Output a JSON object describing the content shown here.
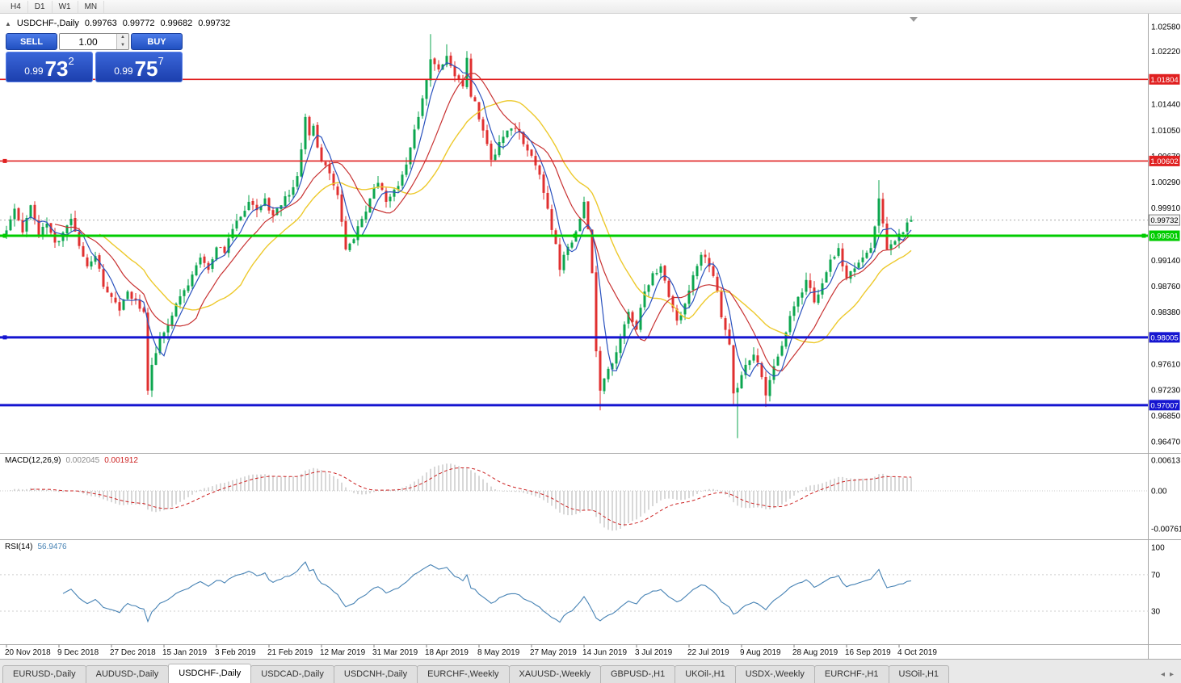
{
  "window": {
    "toolbar_timeframes": [
      "H4",
      "D1",
      "W1",
      "MN"
    ]
  },
  "chart": {
    "header": {
      "collapse_icon": "▲",
      "symbol": "USDCHF-,Daily",
      "open": "0.99763",
      "high": "0.99772",
      "low": "0.99682",
      "close": "0.99732"
    },
    "one_click": {
      "sell_label": "SELL",
      "buy_label": "BUY",
      "volume": "1.00",
      "spinner_up": "▲",
      "spinner_down": "▼",
      "sell": {
        "small": "0.99",
        "big": "73",
        "sup": "2"
      },
      "buy": {
        "small": "0.99",
        "big": "75",
        "sup": "7"
      }
    }
  },
  "chart_data": {
    "type": "candlestick",
    "symbol": "USDCHF",
    "timeframe": "Daily",
    "candles_per_label": 13,
    "x_axis_dates": [
      "20 Nov 2018",
      "9 Dec 2018",
      "27 Dec 2018",
      "15 Jan 2019",
      "3 Feb 2019",
      "21 Feb 2019",
      "12 Mar 2019",
      "31 Mar 2019",
      "18 Apr 2019",
      "8 May 2019",
      "27 May 2019",
      "14 Jun 2019",
      "3 Jul 2019",
      "22 Jul 2019",
      "9 Aug 2019",
      "28 Aug 2019",
      "16 Sep 2019",
      "4 Oct 2019"
    ],
    "y_axis_labels": [
      "1.02580",
      "1.02220",
      "1.01440",
      "1.01050",
      "1.00670",
      "1.00290",
      "0.99910",
      "0.99140",
      "0.98760",
      "0.98380",
      "0.97610",
      "0.97230",
      "0.96850",
      "0.96470"
    ],
    "current_price": {
      "value": 0.99732,
      "label": "0.99732"
    },
    "levels": [
      {
        "price": 1.01804,
        "label": "1.01804",
        "color": "#e02020",
        "width": 1.6,
        "handles": []
      },
      {
        "price": 1.00602,
        "label": "1.00602",
        "color": "#e02020",
        "width": 1.6,
        "handles": [
          6
        ]
      },
      {
        "price": 0.99501,
        "label": "0.99501",
        "color": "#00cc00",
        "width": 3,
        "handles": [
          6,
          712,
          1416
        ]
      },
      {
        "price": 0.98005,
        "label": "0.98005",
        "color": "#1515d0",
        "width": 3,
        "handles": [
          6
        ]
      },
      {
        "price": 0.97007,
        "label": "0.97007",
        "color": "#1515d0",
        "width": 3,
        "handles": []
      }
    ],
    "moving_averages": [
      {
        "period": 5,
        "color": "#2a52be",
        "width": 1.2
      },
      {
        "period": 13,
        "color": "#c83232",
        "width": 1.2
      },
      {
        "period": 24,
        "color": "#edc92c",
        "width": 1.4
      }
    ],
    "macd": {
      "label": "MACD(12,26,9)",
      "fast": 12,
      "slow": 26,
      "signal": 9,
      "value_main": "0.002045",
      "value_signal": "0.001912",
      "axis_labels": [
        "0.00613",
        "0.00",
        "-0.00761"
      ]
    },
    "rsi": {
      "label": "RSI(14)",
      "period": 14,
      "value": "56.9476",
      "levels": [
        70,
        30
      ],
      "axis_labels": [
        "100",
        "70",
        "30"
      ]
    },
    "colors": {
      "up_candle": "#0ca64f",
      "down_candle": "#e03030",
      "macd_histogram": "#b0b0b0",
      "macd_signal": "#cc2222",
      "rsi_line": "#4682b4",
      "background": "#ffffff"
    },
    "price_anchors": [
      [
        0,
        0.9958
      ],
      [
        2,
        0.999
      ],
      [
        4,
        0.9955
      ],
      [
        6,
        0.9995
      ],
      [
        8,
        0.995
      ],
      [
        10,
        0.9968
      ],
      [
        12,
        0.994
      ],
      [
        14,
        0.9955
      ],
      [
        16,
        0.9975
      ],
      [
        18,
        0.9935
      ],
      [
        20,
        0.9905
      ],
      [
        22,
        0.992
      ],
      [
        24,
        0.9875
      ],
      [
        26,
        0.986
      ],
      [
        28,
        0.984
      ],
      [
        30,
        0.9868
      ],
      [
        32,
        0.9855
      ],
      [
        34,
        0.9838
      ],
      [
        35,
        0.9722
      ],
      [
        36,
        0.976
      ],
      [
        38,
        0.98
      ],
      [
        40,
        0.9818
      ],
      [
        42,
        0.985
      ],
      [
        44,
        0.987
      ],
      [
        46,
        0.9893
      ],
      [
        48,
        0.9918
      ],
      [
        50,
        0.99
      ],
      [
        52,
        0.9933
      ],
      [
        54,
        0.9925
      ],
      [
        56,
        0.996
      ],
      [
        58,
        0.9978
      ],
      [
        60,
        1.0
      ],
      [
        62,
        0.9988
      ],
      [
        64,
        1.0005
      ],
      [
        66,
        0.998
      ],
      [
        68,
        0.9995
      ],
      [
        70,
        1.001
      ],
      [
        72,
        1.0038
      ],
      [
        74,
        1.0125
      ],
      [
        75,
        1.0098
      ],
      [
        76,
        1.0112
      ],
      [
        77,
        1.008
      ],
      [
        78,
        1.006
      ],
      [
        80,
        1.0042
      ],
      [
        82,
        1.001
      ],
      [
        84,
        0.993
      ],
      [
        86,
        0.9945
      ],
      [
        88,
        0.9975
      ],
      [
        90,
        1.0005
      ],
      [
        92,
        1.0028
      ],
      [
        94,
        1.0
      ],
      [
        96,
        1.0018
      ],
      [
        98,
        1.004
      ],
      [
        100,
        1.008
      ],
      [
        102,
        1.0125
      ],
      [
        104,
        1.018
      ],
      [
        105,
        1.021
      ],
      [
        107,
        1.0195
      ],
      [
        109,
        1.0215
      ],
      [
        111,
        1.0185
      ],
      [
        113,
        1.017
      ],
      [
        114,
        1.0212
      ],
      [
        115,
        1.0155
      ],
      [
        116,
        1.0148
      ],
      [
        118,
        1.0105
      ],
      [
        120,
        1.0062
      ],
      [
        122,
        1.0088
      ],
      [
        124,
        1.0105
      ],
      [
        126,
        1.0108
      ],
      [
        128,
        1.0085
      ],
      [
        130,
        1.0068
      ],
      [
        132,
        1.004
      ],
      [
        134,
        0.999
      ],
      [
        136,
        0.9938
      ],
      [
        137,
        0.99
      ],
      [
        138,
        0.9922
      ],
      [
        140,
        0.994
      ],
      [
        142,
        0.9975
      ],
      [
        143,
        1.0
      ],
      [
        144,
        0.996
      ],
      [
        145,
        0.9895
      ],
      [
        146,
        0.978
      ],
      [
        147,
        0.9722
      ],
      [
        148,
        0.974
      ],
      [
        150,
        0.9762
      ],
      [
        152,
        0.98
      ],
      [
        154,
        0.9838
      ],
      [
        156,
        0.9812
      ],
      [
        158,
        0.9868
      ],
      [
        160,
        0.9895
      ],
      [
        162,
        0.9905
      ],
      [
        164,
        0.986
      ],
      [
        166,
        0.9825
      ],
      [
        168,
        0.985
      ],
      [
        170,
        0.9892
      ],
      [
        172,
        0.9922
      ],
      [
        174,
        0.9905
      ],
      [
        176,
        0.9868
      ],
      [
        177,
        0.983
      ],
      [
        179,
        0.979
      ],
      [
        180,
        0.9718
      ],
      [
        181,
        0.9726
      ],
      [
        182,
        0.9745
      ],
      [
        183,
        0.976
      ],
      [
        185,
        0.9775
      ],
      [
        187,
        0.9742
      ],
      [
        188,
        0.9715
      ],
      [
        190,
        0.9758
      ],
      [
        192,
        0.9788
      ],
      [
        194,
        0.9832
      ],
      [
        196,
        0.986
      ],
      [
        198,
        0.9885
      ],
      [
        200,
        0.9852
      ],
      [
        202,
        0.988
      ],
      [
        204,
        0.9915
      ],
      [
        206,
        0.9932
      ],
      [
        208,
        0.9888
      ],
      [
        210,
        0.9902
      ],
      [
        212,
        0.9918
      ],
      [
        214,
        0.9932
      ],
      [
        216,
        1.0005
      ],
      [
        218,
        0.993
      ],
      [
        220,
        0.9942
      ],
      [
        222,
        0.9955
      ],
      [
        224,
        0.99732
      ]
    ],
    "wick_overrides": {
      "35": {
        "low": 0.9716
      },
      "105": {
        "high": 1.0247
      },
      "109": {
        "high": 1.0232
      },
      "114": {
        "high": 1.0222
      },
      "147": {
        "low": 0.9693
      },
      "180": {
        "low": 0.9702
      },
      "181": {
        "low": 0.9652
      },
      "188": {
        "low": 0.9698
      },
      "216": {
        "high": 1.0032
      }
    }
  },
  "tabs": {
    "items": [
      {
        "label": "EURUSD-,Daily"
      },
      {
        "label": "AUDUSD-,Daily"
      },
      {
        "label": "USDCHF-,Daily"
      },
      {
        "label": "USDCAD-,Daily"
      },
      {
        "label": "USDCNH-,Daily"
      },
      {
        "label": "EURCHF-,Weekly"
      },
      {
        "label": "XAUUSD-,Weekly"
      },
      {
        "label": "GBPUSD-,H1"
      },
      {
        "label": "UKOil-,H1"
      },
      {
        "label": "USDX-,Weekly"
      },
      {
        "label": "EURCHF-,H1"
      },
      {
        "label": "USOil-,H1"
      }
    ],
    "active_index": 2,
    "scroll_left": "◂",
    "scroll_right": "▸"
  }
}
